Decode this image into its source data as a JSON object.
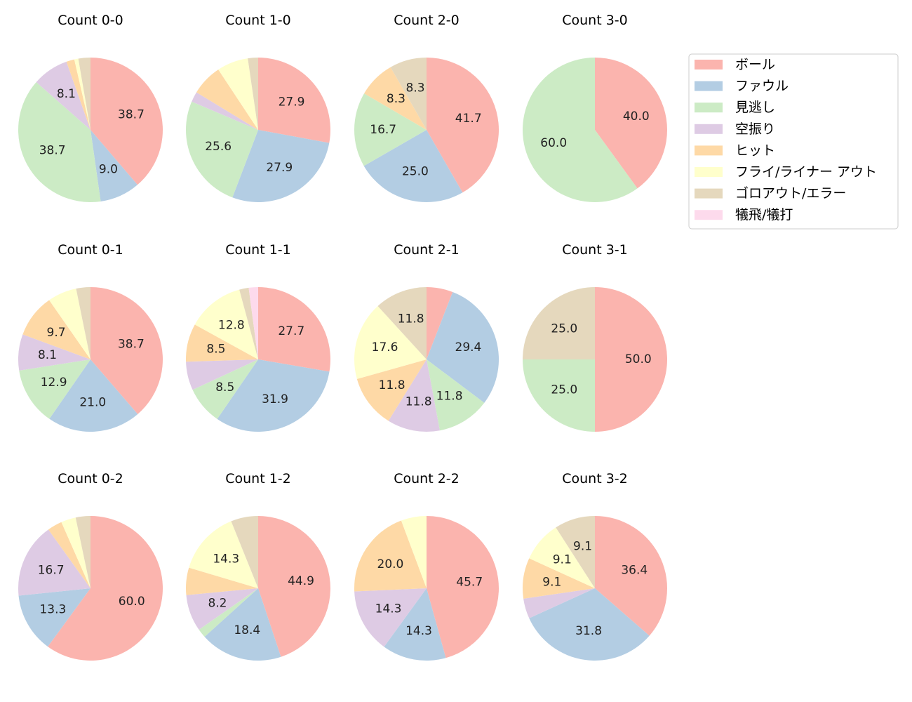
{
  "chart_data": {
    "type": "pie",
    "start_angle": 90,
    "direction": "clockwise",
    "label_threshold_note": "",
    "legend": {
      "placement": "upper-right",
      "entries": [
        "ボール",
        "ファウル",
        "見逃し",
        "空振り",
        "ヒット",
        "フライ/ライナー アウト",
        "ゴロアウト/エラー",
        "犠飛/犠打"
      ],
      "colors": [
        "#fbb4ae",
        "#b3cde3",
        "#ccebc5",
        "#decbe4",
        "#fed9a6",
        "#ffffcc",
        "#e5d8bd",
        "#fddaec"
      ]
    },
    "charts": [
      {
        "title": "Count 0-0",
        "values": [
          38.7,
          9.0,
          38.7,
          8.1,
          1.8,
          0.9,
          2.7,
          0
        ]
      },
      {
        "title": "Count 1-0",
        "values": [
          27.9,
          27.9,
          25.6,
          2.3,
          7.0,
          7.0,
          2.3,
          0
        ]
      },
      {
        "title": "Count 2-0",
        "values": [
          41.7,
          25.0,
          16.7,
          0,
          8.3,
          0,
          8.3,
          0
        ]
      },
      {
        "title": "Count 3-0",
        "values": [
          40.0,
          0,
          60.0,
          0,
          0,
          0,
          0,
          0
        ]
      },
      {
        "title": "Count 0-1",
        "values": [
          38.7,
          21.0,
          12.9,
          8.1,
          9.7,
          6.5,
          3.2,
          0
        ]
      },
      {
        "title": "Count 1-1",
        "values": [
          27.7,
          31.9,
          8.5,
          6.4,
          8.5,
          12.8,
          2.1,
          2.1
        ]
      },
      {
        "title": "Count 2-1",
        "values": [
          5.9,
          29.4,
          11.8,
          11.8,
          11.8,
          17.6,
          11.8,
          0
        ]
      },
      {
        "title": "Count 3-1",
        "values": [
          50.0,
          0,
          25.0,
          0,
          0,
          0,
          25.0,
          0
        ]
      },
      {
        "title": "Count 0-2",
        "values": [
          60.0,
          13.3,
          0,
          16.7,
          3.3,
          3.3,
          3.3,
          0
        ]
      },
      {
        "title": "Count 1-2",
        "values": [
          44.9,
          18.4,
          2.0,
          8.2,
          6.1,
          14.3,
          6.1,
          0
        ]
      },
      {
        "title": "Count 2-2",
        "values": [
          45.7,
          14.3,
          0,
          14.3,
          20.0,
          5.7,
          0,
          0
        ]
      },
      {
        "title": "Count 3-2",
        "values": [
          36.4,
          31.8,
          0,
          4.5,
          9.1,
          9.1,
          9.1,
          0
        ]
      }
    ]
  }
}
